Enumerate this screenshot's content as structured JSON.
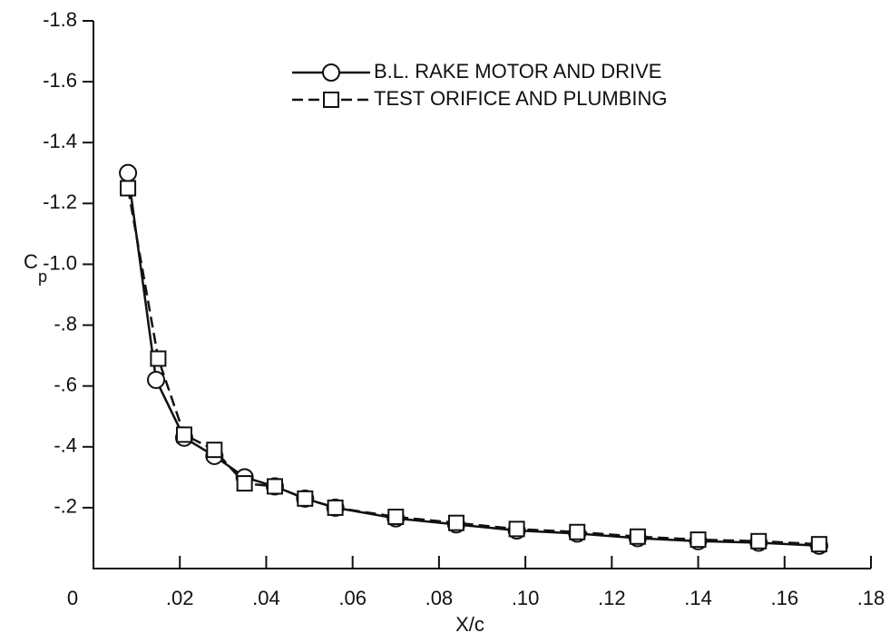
{
  "chart_data": {
    "type": "line",
    "xlabel": "X/c",
    "ylabel": "C",
    "ylabel_subscript": "p",
    "xlim": [
      0,
      0.18
    ],
    "ylim": [
      0,
      -1.8
    ],
    "xticks": [
      0,
      {
        "value": 0.02,
        "label": ".02"
      },
      {
        "value": 0.04,
        "label": ".04"
      },
      {
        "value": 0.06,
        "label": ".06"
      },
      {
        "value": 0.08,
        "label": ".08"
      },
      {
        "value": 0.1,
        "label": ".10"
      },
      {
        "value": 0.12,
        "label": ".12"
      },
      {
        "value": 0.14,
        "label": ".14"
      },
      {
        "value": 0.16,
        "label": ".16"
      },
      {
        "value": 0.18,
        "label": ".18"
      }
    ],
    "yticks": [
      {
        "value": -0.2,
        "label": "-.2"
      },
      {
        "value": -0.4,
        "label": "-.4"
      },
      {
        "value": -0.6,
        "label": "-.6"
      },
      {
        "value": -0.8,
        "label": "-.8"
      },
      {
        "value": -1.0,
        "label": "-1.0"
      },
      {
        "value": -1.2,
        "label": "-1.2"
      },
      {
        "value": -1.4,
        "label": "-1.4"
      },
      {
        "value": -1.6,
        "label": "-1.6"
      },
      {
        "value": -1.8,
        "label": "-1.8"
      }
    ],
    "series": [
      {
        "name": "B.L. RAKE MOTOR AND DRIVE",
        "color": "#111111",
        "marker": "circle",
        "dash": false,
        "x": [
          0.008,
          0.0145,
          0.021,
          0.028,
          0.035,
          0.042,
          0.049,
          0.056,
          0.07,
          0.084,
          0.098,
          0.112,
          0.126,
          0.14,
          0.154,
          0.168
        ],
        "values": [
          -1.3,
          -0.62,
          -0.43,
          -0.37,
          -0.3,
          -0.27,
          -0.23,
          -0.2,
          -0.165,
          -0.145,
          -0.125,
          -0.115,
          -0.1,
          -0.09,
          -0.085,
          -0.075
        ]
      },
      {
        "name": "TEST ORIFICE AND PLUMBING",
        "color": "#111111",
        "marker": "square",
        "dash": true,
        "x": [
          0.008,
          0.015,
          0.021,
          0.028,
          0.035,
          0.042,
          0.049,
          0.056,
          0.07,
          0.084,
          0.098,
          0.112,
          0.126,
          0.14,
          0.154,
          0.168
        ],
        "values": [
          -1.25,
          -0.69,
          -0.44,
          -0.39,
          -0.28,
          -0.27,
          -0.23,
          -0.2,
          -0.17,
          -0.15,
          -0.13,
          -0.12,
          -0.105,
          -0.095,
          -0.09,
          -0.08
        ]
      }
    ]
  }
}
